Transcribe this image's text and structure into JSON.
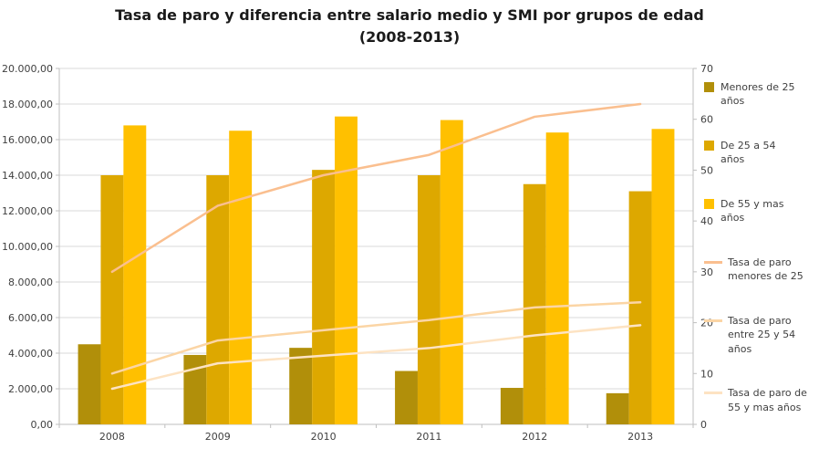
{
  "title": {
    "line1": "Tasa de paro y diferencia entre salario medio y SMI por grupos de edad",
    "line2": "(2008-2013)"
  },
  "chart_data": {
    "type": "combo-bar-line",
    "categories": [
      "2008",
      "2009",
      "2010",
      "2011",
      "2012",
      "2013"
    ],
    "bar_series": [
      {
        "name": "Menores de 25 años",
        "color": "#B18F0A",
        "axis": "left",
        "values": [
          4500,
          3900,
          4300,
          3000,
          2050,
          1750
        ]
      },
      {
        "name": "De 25 a 54 años",
        "color": "#DDA800",
        "axis": "left",
        "values": [
          14000,
          14000,
          14300,
          14000,
          13500,
          13100
        ]
      },
      {
        "name": "De 55 y mas años",
        "color": "#FFC000",
        "axis": "left",
        "values": [
          16800,
          16500,
          17300,
          17100,
          16400,
          16600
        ]
      }
    ],
    "line_series": [
      {
        "name": "Tasa de paro menores de 25",
        "color": "#FABF8F",
        "axis": "right",
        "values": [
          30,
          43,
          49,
          53,
          60.5,
          63
        ]
      },
      {
        "name": "Tasa de paro entre 25 y 54 años",
        "color": "#FBD5A5",
        "axis": "right",
        "values": [
          10,
          16.5,
          18.5,
          20.5,
          23,
          24
        ]
      },
      {
        "name": "Tasa de paro de 55 y mas años",
        "color": "#FDE3C3",
        "axis": "right",
        "values": [
          7,
          12,
          13.5,
          15,
          17.5,
          19.5
        ]
      }
    ],
    "left_axis": {
      "min": 0,
      "max": 20000,
      "step": 2000,
      "labels": [
        "20.000,00",
        "18.000,00",
        "16.000,00",
        "14.000,00",
        "12.000,00",
        "10.000,00",
        "8.000,00",
        "6.000,00",
        "4.000,00",
        "2.000,00",
        "0,00"
      ]
    },
    "right_axis": {
      "min": 0,
      "max": 70,
      "step": 10,
      "labels": [
        "70",
        "60",
        "50",
        "40",
        "30",
        "20",
        "10",
        "0"
      ]
    },
    "grid": true,
    "legend_position": "right",
    "style": {
      "gridline": "#D9D9D9",
      "axis_line": "#BFBFBF",
      "label_color": "#3F3F3F"
    }
  }
}
